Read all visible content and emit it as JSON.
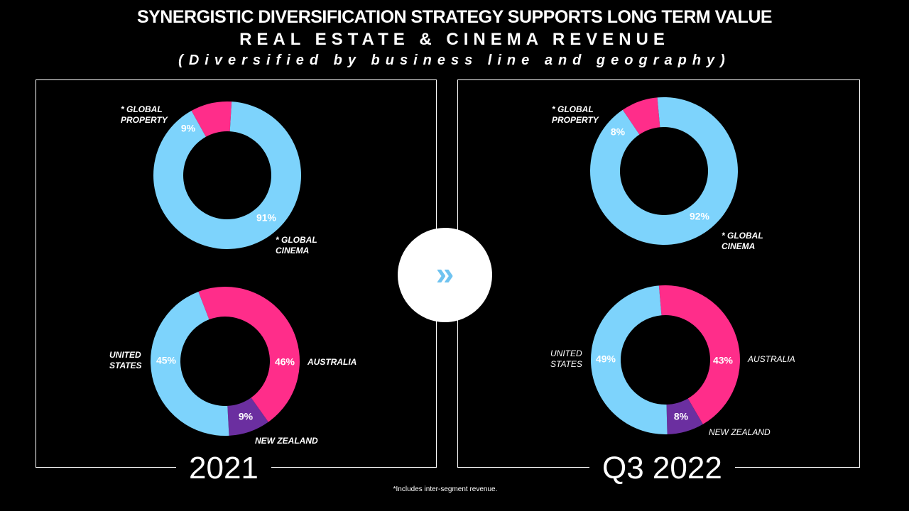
{
  "title": {
    "line1": "SYNERGISTIC DIVERSIFICATION STRATEGY SUPPORTS LONG TERM VALUE",
    "line2": "REAL ESTATE & CINEMA REVENUE",
    "line3": "(Diversified by business line and geography)"
  },
  "colors": {
    "cinema": "#7dd3fc",
    "property": "#ff2d8a",
    "us": "#7dd3fc",
    "australia": "#ff2d8a",
    "nz": "#6b2fa0"
  },
  "panels": {
    "left": {
      "year": "2021",
      "labels": {
        "property": "*   GLOBAL\nPROPERTY",
        "cinema": "*  GLOBAL\nCINEMA",
        "us": "UNITED\nSTATES",
        "australia": "AUSTRALIA",
        "nz": "NEW ZEALAND"
      }
    },
    "right": {
      "year": "Q3 2022",
      "labels": {
        "property": "*  GLOBAL\nPROPERTY",
        "cinema": "*  GLOBAL\nCINEMA",
        "us": "UNITED\nSTATES",
        "australia": "AUSTRALIA",
        "nz": "NEW ZEALAND"
      }
    }
  },
  "center_icon": {
    "icon": "double-chevron-right-icon",
    "glyph": "»"
  },
  "footnote": "*Includes inter-segment revenue.",
  "chart_data": [
    {
      "type": "pie",
      "period": "2021",
      "chart": "business line",
      "slices": [
        {
          "label": "GLOBAL PROPERTY",
          "value": 9,
          "text": "9%"
        },
        {
          "label": "GLOBAL CINEMA",
          "value": 91,
          "text": "91%"
        }
      ]
    },
    {
      "type": "pie",
      "period": "2021",
      "chart": "geography",
      "slices": [
        {
          "label": "AUSTRALIA",
          "value": 46,
          "text": "46%"
        },
        {
          "label": "NEW ZEALAND",
          "value": 9,
          "text": "9%"
        },
        {
          "label": "UNITED STATES",
          "value": 45,
          "text": "45%"
        }
      ]
    },
    {
      "type": "pie",
      "period": "Q3 2022",
      "chart": "business line",
      "slices": [
        {
          "label": "GLOBAL PROPERTY",
          "value": 8,
          "text": "8%"
        },
        {
          "label": "GLOBAL CINEMA",
          "value": 92,
          "text": "92%"
        }
      ]
    },
    {
      "type": "pie",
      "period": "Q3 2022",
      "chart": "geography",
      "slices": [
        {
          "label": "AUSTRALIA",
          "value": 43,
          "text": "43%"
        },
        {
          "label": "NEW ZEALAND",
          "value": 8,
          "text": "8%"
        },
        {
          "label": "UNITED STATES",
          "value": 49,
          "text": "49%"
        }
      ]
    }
  ]
}
